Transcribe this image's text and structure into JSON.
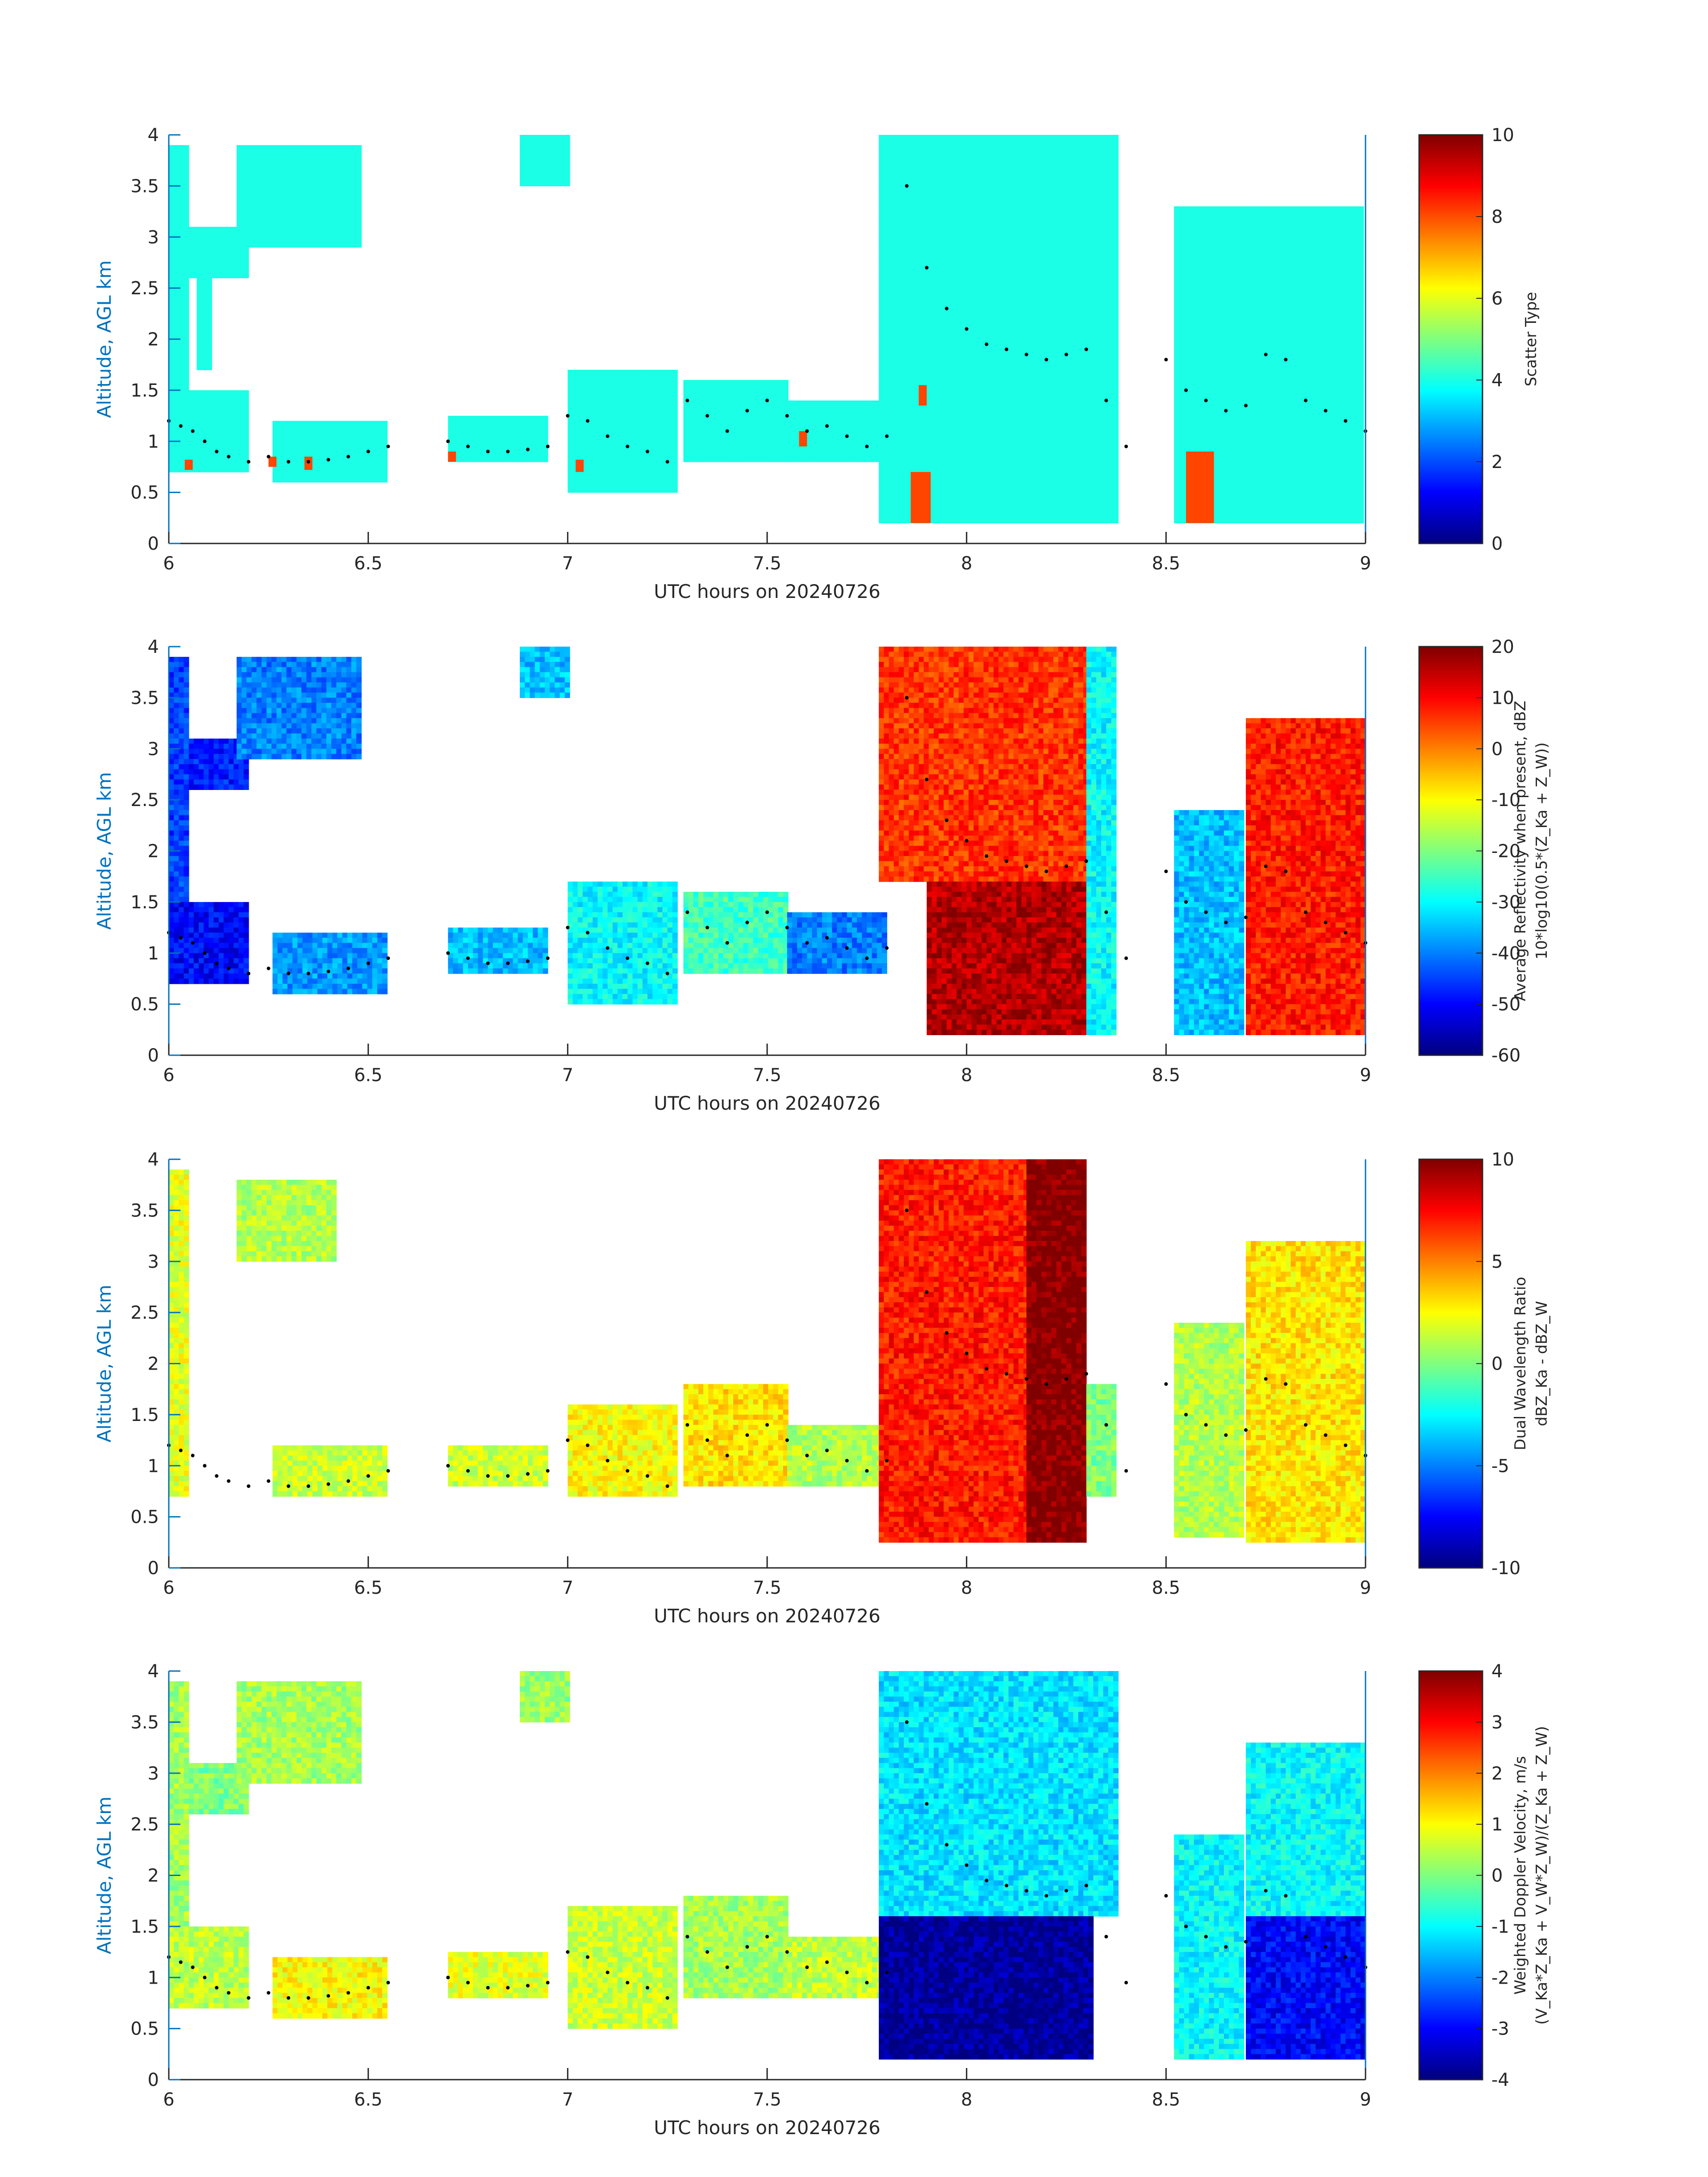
{
  "chart_data": [
    {
      "type": "heatmap",
      "title": "",
      "xlabel": "UTC hours on 20240726",
      "ylabel": "Altitude, AGL km",
      "xlim": [
        6,
        9
      ],
      "ylim": [
        0,
        4
      ],
      "xticks": [
        "6",
        "6.5",
        "7",
        "7.5",
        "8",
        "8.5",
        "9"
      ],
      "yticks": [
        "0",
        "0.5",
        "1",
        "1.5",
        "2",
        "2.5",
        "3",
        "3.5",
        "4"
      ],
      "colorbar": {
        "label_lines": [
          "Scatter Type"
        ],
        "clim": [
          0,
          10
        ],
        "ticks": [
          "0",
          "2",
          "4",
          "6",
          "8",
          "10"
        ]
      },
      "fields": {
        "background": 4,
        "regions": [
          {
            "x": [
              6.0,
              6.05
            ],
            "y": [
              0.7,
              3.9
            ],
            "value": 4
          },
          {
            "x": [
              6.05,
              6.2
            ],
            "y": [
              2.6,
              3.1
            ],
            "value": 4
          },
          {
            "x": [
              6.07,
              6.11
            ],
            "y": [
              1.7,
              2.6
            ],
            "value": 4
          },
          {
            "x": [
              6.0,
              6.2
            ],
            "y": [
              0.7,
              1.5
            ],
            "value": 4
          },
          {
            "x": [
              6.17,
              6.48
            ],
            "y": [
              2.9,
              3.9
            ],
            "value": 4
          },
          {
            "x": [
              6.26,
              6.55
            ],
            "y": [
              0.6,
              1.2
            ],
            "value": 4
          },
          {
            "x": [
              6.7,
              6.95
            ],
            "y": [
              0.8,
              1.25
            ],
            "value": 4
          },
          {
            "x": [
              6.88,
              7.0
            ],
            "y": [
              3.5,
              4.0
            ],
            "value": 4
          },
          {
            "x": [
              7.0,
              7.27
            ],
            "y": [
              0.5,
              1.7
            ],
            "value": 4
          },
          {
            "x": [
              7.29,
              7.55
            ],
            "y": [
              0.8,
              1.6
            ],
            "value": 4
          },
          {
            "x": [
              7.55,
              7.8
            ],
            "y": [
              0.8,
              1.4
            ],
            "value": 4
          },
          {
            "x": [
              7.78,
              8.38
            ],
            "y": [
              0.2,
              4.0
            ],
            "value": 4
          },
          {
            "x": [
              8.52,
              9.0
            ],
            "y": [
              0.2,
              3.3
            ],
            "value": 4
          }
        ],
        "special": [
          {
            "x": [
              7.86,
              7.91
            ],
            "y": [
              0.2,
              0.7
            ],
            "value": 8
          },
          {
            "x": [
              7.88,
              7.9
            ],
            "y": [
              1.35,
              1.55
            ],
            "value": 8
          },
          {
            "x": [
              8.55,
              8.62
            ],
            "y": [
              0.2,
              0.9
            ],
            "value": 8
          },
          {
            "x": [
              6.7,
              6.72
            ],
            "y": [
              0.8,
              0.9
            ],
            "value": 8
          },
          {
            "x": [
              7.02,
              7.04
            ],
            "y": [
              0.7,
              0.82
            ],
            "value": 8
          },
          {
            "x": [
              6.25,
              6.27
            ],
            "y": [
              0.75,
              0.85
            ],
            "value": 8
          },
          {
            "x": [
              6.34,
              6.36
            ],
            "y": [
              0.72,
              0.85
            ],
            "value": 8
          },
          {
            "x": [
              7.58,
              7.6
            ],
            "y": [
              0.95,
              1.1
            ],
            "value": 8
          },
          {
            "x": [
              6.04,
              6.06
            ],
            "y": [
              0.72,
              0.82
            ],
            "value": 8
          }
        ]
      }
    },
    {
      "type": "heatmap",
      "title": "",
      "xlabel": "UTC hours on 20240726",
      "ylabel": "Altitude, AGL km",
      "xlim": [
        6,
        9
      ],
      "ylim": [
        0,
        4
      ],
      "xticks": [
        "6",
        "6.5",
        "7",
        "7.5",
        "8",
        "8.5",
        "9"
      ],
      "yticks": [
        "0",
        "0.5",
        "1",
        "1.5",
        "2",
        "2.5",
        "3",
        "3.5",
        "4"
      ],
      "colorbar": {
        "label_lines": [
          "Average Reflectivity when present, dBZ",
          "10*log10(0.5*(Z_Ka + Z_W))"
        ],
        "clim": [
          -60,
          20
        ],
        "ticks": [
          "-60",
          "-50",
          "-40",
          "-30",
          "-20",
          "-10",
          "0",
          "10",
          "20"
        ]
      },
      "fields": {
        "regions": [
          {
            "x": [
              6.0,
              6.05
            ],
            "y": [
              0.7,
              3.9
            ],
            "value": -45
          },
          {
            "x": [
              6.05,
              6.2
            ],
            "y": [
              2.6,
              3.1
            ],
            "value": -48
          },
          {
            "x": [
              6.0,
              6.2
            ],
            "y": [
              0.7,
              1.5
            ],
            "value": -50
          },
          {
            "x": [
              6.17,
              6.48
            ],
            "y": [
              2.9,
              3.9
            ],
            "value": -40
          },
          {
            "x": [
              6.26,
              6.55
            ],
            "y": [
              0.6,
              1.2
            ],
            "value": -38
          },
          {
            "x": [
              6.7,
              6.95
            ],
            "y": [
              0.8,
              1.25
            ],
            "value": -35
          },
          {
            "x": [
              6.88,
              7.0
            ],
            "y": [
              3.5,
              4.0
            ],
            "value": -35
          },
          {
            "x": [
              7.0,
              7.27
            ],
            "y": [
              0.5,
              1.7
            ],
            "value": -30
          },
          {
            "x": [
              7.29,
              7.55
            ],
            "y": [
              0.8,
              1.6
            ],
            "value": -25
          },
          {
            "x": [
              7.55,
              7.8
            ],
            "y": [
              0.8,
              1.4
            ],
            "value": -40
          },
          {
            "x": [
              7.78,
              8.3
            ],
            "y": [
              1.7,
              4.0
            ],
            "value": 6
          },
          {
            "x": [
              7.9,
              8.3
            ],
            "y": [
              0.2,
              1.7
            ],
            "value": 16
          },
          {
            "x": [
              8.3,
              8.38
            ],
            "y": [
              0.2,
              4.0
            ],
            "value": -30
          },
          {
            "x": [
              8.52,
              8.7
            ],
            "y": [
              0.2,
              2.4
            ],
            "value": -35
          },
          {
            "x": [
              8.7,
              9.0
            ],
            "y": [
              0.2,
              3.3
            ],
            "value": 8
          }
        ]
      }
    },
    {
      "type": "heatmap",
      "title": "",
      "xlabel": "UTC hours on 20240726",
      "ylabel": "Altitude, AGL km",
      "xlim": [
        6,
        9
      ],
      "ylim": [
        0,
        4
      ],
      "xticks": [
        "6",
        "6.5",
        "7",
        "7.5",
        "8",
        "8.5",
        "9"
      ],
      "yticks": [
        "0",
        "0.5",
        "1",
        "1.5",
        "2",
        "2.5",
        "3",
        "3.5",
        "4"
      ],
      "colorbar": {
        "label_lines": [
          "Dual Wavelength Ratio",
          "dBZ_Ka - dBZ_W"
        ],
        "clim": [
          -10,
          10
        ],
        "ticks": [
          "-10",
          "-5",
          "0",
          "5",
          "10"
        ]
      },
      "fields": {
        "regions": [
          {
            "x": [
              6.0,
              6.05
            ],
            "y": [
              0.7,
              3.9
            ],
            "value": 2
          },
          {
            "x": [
              6.17,
              6.42
            ],
            "y": [
              3.0,
              3.8
            ],
            "value": 1
          },
          {
            "x": [
              6.26,
              6.55
            ],
            "y": [
              0.7,
              1.2
            ],
            "value": 1.5
          },
          {
            "x": [
              6.7,
              6.95
            ],
            "y": [
              0.8,
              1.2
            ],
            "value": 1.5
          },
          {
            "x": [
              7.0,
              7.27
            ],
            "y": [
              0.7,
              1.6
            ],
            "value": 2.5
          },
          {
            "x": [
              7.29,
              7.55
            ],
            "y": [
              0.8,
              1.8
            ],
            "value": 3
          },
          {
            "x": [
              7.55,
              7.8
            ],
            "y": [
              0.8,
              1.4
            ],
            "value": 1
          },
          {
            "x": [
              7.78,
              8.15
            ],
            "y": [
              0.25,
              4.0
            ],
            "value": 7
          },
          {
            "x": [
              8.15,
              8.3
            ],
            "y": [
              0.25,
              4.0
            ],
            "value": 10
          },
          {
            "x": [
              8.3,
              8.38
            ],
            "y": [
              0.7,
              1.8
            ],
            "value": 0
          },
          {
            "x": [
              8.52,
              8.7
            ],
            "y": [
              0.3,
              2.4
            ],
            "value": 1
          },
          {
            "x": [
              8.7,
              9.0
            ],
            "y": [
              0.25,
              3.2
            ],
            "value": 3
          }
        ]
      }
    },
    {
      "type": "heatmap",
      "title": "",
      "xlabel": "UTC hours on 20240726",
      "ylabel": "Altitude, AGL km",
      "xlim": [
        6,
        9
      ],
      "ylim": [
        0,
        4
      ],
      "xticks": [
        "6",
        "6.5",
        "7",
        "7.5",
        "8",
        "8.5",
        "9"
      ],
      "yticks": [
        "0",
        "0.5",
        "1",
        "1.5",
        "2",
        "2.5",
        "3",
        "3.5",
        "4"
      ],
      "colorbar": {
        "label_lines": [
          "Weighted Doppler Velocity, m/s",
          "(V_Ka*Z_Ka + V_W*Z_W)/(Z_Ka + Z_W)"
        ],
        "clim": [
          -4,
          4
        ],
        "ticks": [
          "-4",
          "-3",
          "-2",
          "-1",
          "0",
          "1",
          "2",
          "3",
          "4"
        ]
      },
      "fields": {
        "regions": [
          {
            "x": [
              6.0,
              6.05
            ],
            "y": [
              0.7,
              3.9
            ],
            "value": 0.3
          },
          {
            "x": [
              6.05,
              6.2
            ],
            "y": [
              2.6,
              3.1
            ],
            "value": 0
          },
          {
            "x": [
              6.0,
              6.2
            ],
            "y": [
              0.7,
              1.5
            ],
            "value": 0.5
          },
          {
            "x": [
              6.17,
              6.48
            ],
            "y": [
              2.9,
              3.9
            ],
            "value": 0.3
          },
          {
            "x": [
              6.26,
              6.55
            ],
            "y": [
              0.6,
              1.2
            ],
            "value": 1
          },
          {
            "x": [
              6.7,
              6.95
            ],
            "y": [
              0.8,
              1.25
            ],
            "value": 0.8
          },
          {
            "x": [
              6.88,
              7.0
            ],
            "y": [
              3.5,
              4.0
            ],
            "value": 0.2
          },
          {
            "x": [
              7.0,
              7.27
            ],
            "y": [
              0.5,
              1.7
            ],
            "value": 0.6
          },
          {
            "x": [
              7.29,
              7.55
            ],
            "y": [
              0.8,
              1.8
            ],
            "value": 0.3
          },
          {
            "x": [
              7.55,
              7.8
            ],
            "y": [
              0.8,
              1.4
            ],
            "value": 0.5
          },
          {
            "x": [
              7.78,
              8.38
            ],
            "y": [
              1.6,
              4.0
            ],
            "value": -1.2
          },
          {
            "x": [
              7.78,
              8.32
            ],
            "y": [
              0.2,
              1.6
            ],
            "value": -3.8
          },
          {
            "x": [
              8.52,
              8.7
            ],
            "y": [
              0.2,
              2.4
            ],
            "value": -1
          },
          {
            "x": [
              8.7,
              9.0
            ],
            "y": [
              1.6,
              3.3
            ],
            "value": -1
          },
          {
            "x": [
              8.7,
              9.0
            ],
            "y": [
              0.2,
              1.6
            ],
            "value": -3
          }
        ]
      }
    }
  ],
  "cloud_top_dots": {
    "x": [
      6.0,
      6.03,
      6.06,
      6.09,
      6.12,
      6.15,
      6.2,
      6.25,
      6.3,
      6.35,
      6.4,
      6.45,
      6.5,
      6.55,
      6.7,
      6.75,
      6.8,
      6.85,
      6.9,
      6.95,
      7.0,
      7.05,
      7.1,
      7.15,
      7.2,
      7.25,
      7.3,
      7.35,
      7.4,
      7.45,
      7.5,
      7.55,
      7.6,
      7.65,
      7.7,
      7.75,
      7.8,
      7.85,
      7.9,
      7.95,
      8.0,
      8.05,
      8.1,
      8.15,
      8.2,
      8.25,
      8.3,
      8.35,
      8.4,
      8.5,
      8.55,
      8.6,
      8.65,
      8.7,
      8.75,
      8.8,
      8.85,
      8.9,
      8.95,
      9.0
    ],
    "y": [
      1.2,
      1.15,
      1.1,
      1.0,
      0.9,
      0.85,
      0.8,
      0.85,
      0.8,
      0.8,
      0.82,
      0.85,
      0.9,
      0.95,
      1.0,
      0.95,
      0.9,
      0.9,
      0.92,
      0.95,
      1.25,
      1.2,
      1.05,
      0.95,
      0.9,
      0.8,
      1.4,
      1.25,
      1.1,
      1.3,
      1.4,
      1.25,
      1.1,
      1.15,
      1.05,
      0.95,
      1.05,
      3.5,
      2.7,
      2.3,
      2.1,
      1.95,
      1.9,
      1.85,
      1.8,
      1.85,
      1.9,
      1.4,
      0.95,
      1.8,
      1.5,
      1.4,
      1.3,
      1.35,
      1.85,
      1.8,
      1.4,
      1.3,
      1.2,
      1.1
    ]
  }
}
